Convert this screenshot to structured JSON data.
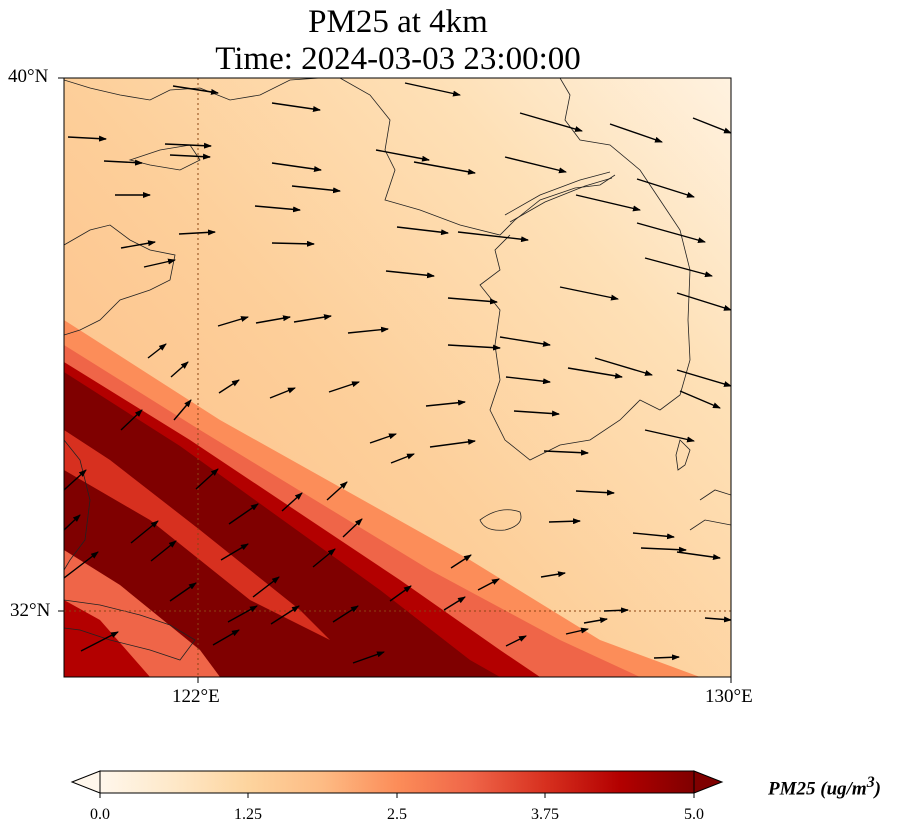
{
  "title": {
    "line1": "PM25 at 4km",
    "line2": "Time: 2024-03-03 23:00:00"
  },
  "map": {
    "variable": "PM25",
    "lat_range": [
      31,
      40.9
    ],
    "lon_range": [
      119,
      130
    ],
    "lat_labels": [
      "40°N",
      "32°N"
    ],
    "lon_labels": [
      "122°E",
      "130°E"
    ],
    "gridlines": "dotted brown at 122°E and 32°N",
    "wind_vectors": "black arrows, predominantly westerly/west-northwesterly"
  },
  "colorbar": {
    "colormap": "OrRd",
    "vmin": 0.0,
    "vmax": 5.0,
    "extend": "both",
    "ticks": [
      "0.0",
      "1.25",
      "2.5",
      "3.75",
      "5.0"
    ],
    "label": "PM25 (ug/m",
    "label_sup": "3",
    "label_end": ")"
  },
  "colors": {
    "low": "#fff7ec",
    "pale": "#fee8c8",
    "light": "#fdd49e",
    "mid": "#fdbb84",
    "orange": "#fc8d59",
    "red": "#ef6548",
    "dark": "#d7301f",
    "darkest": "#7f0000"
  }
}
